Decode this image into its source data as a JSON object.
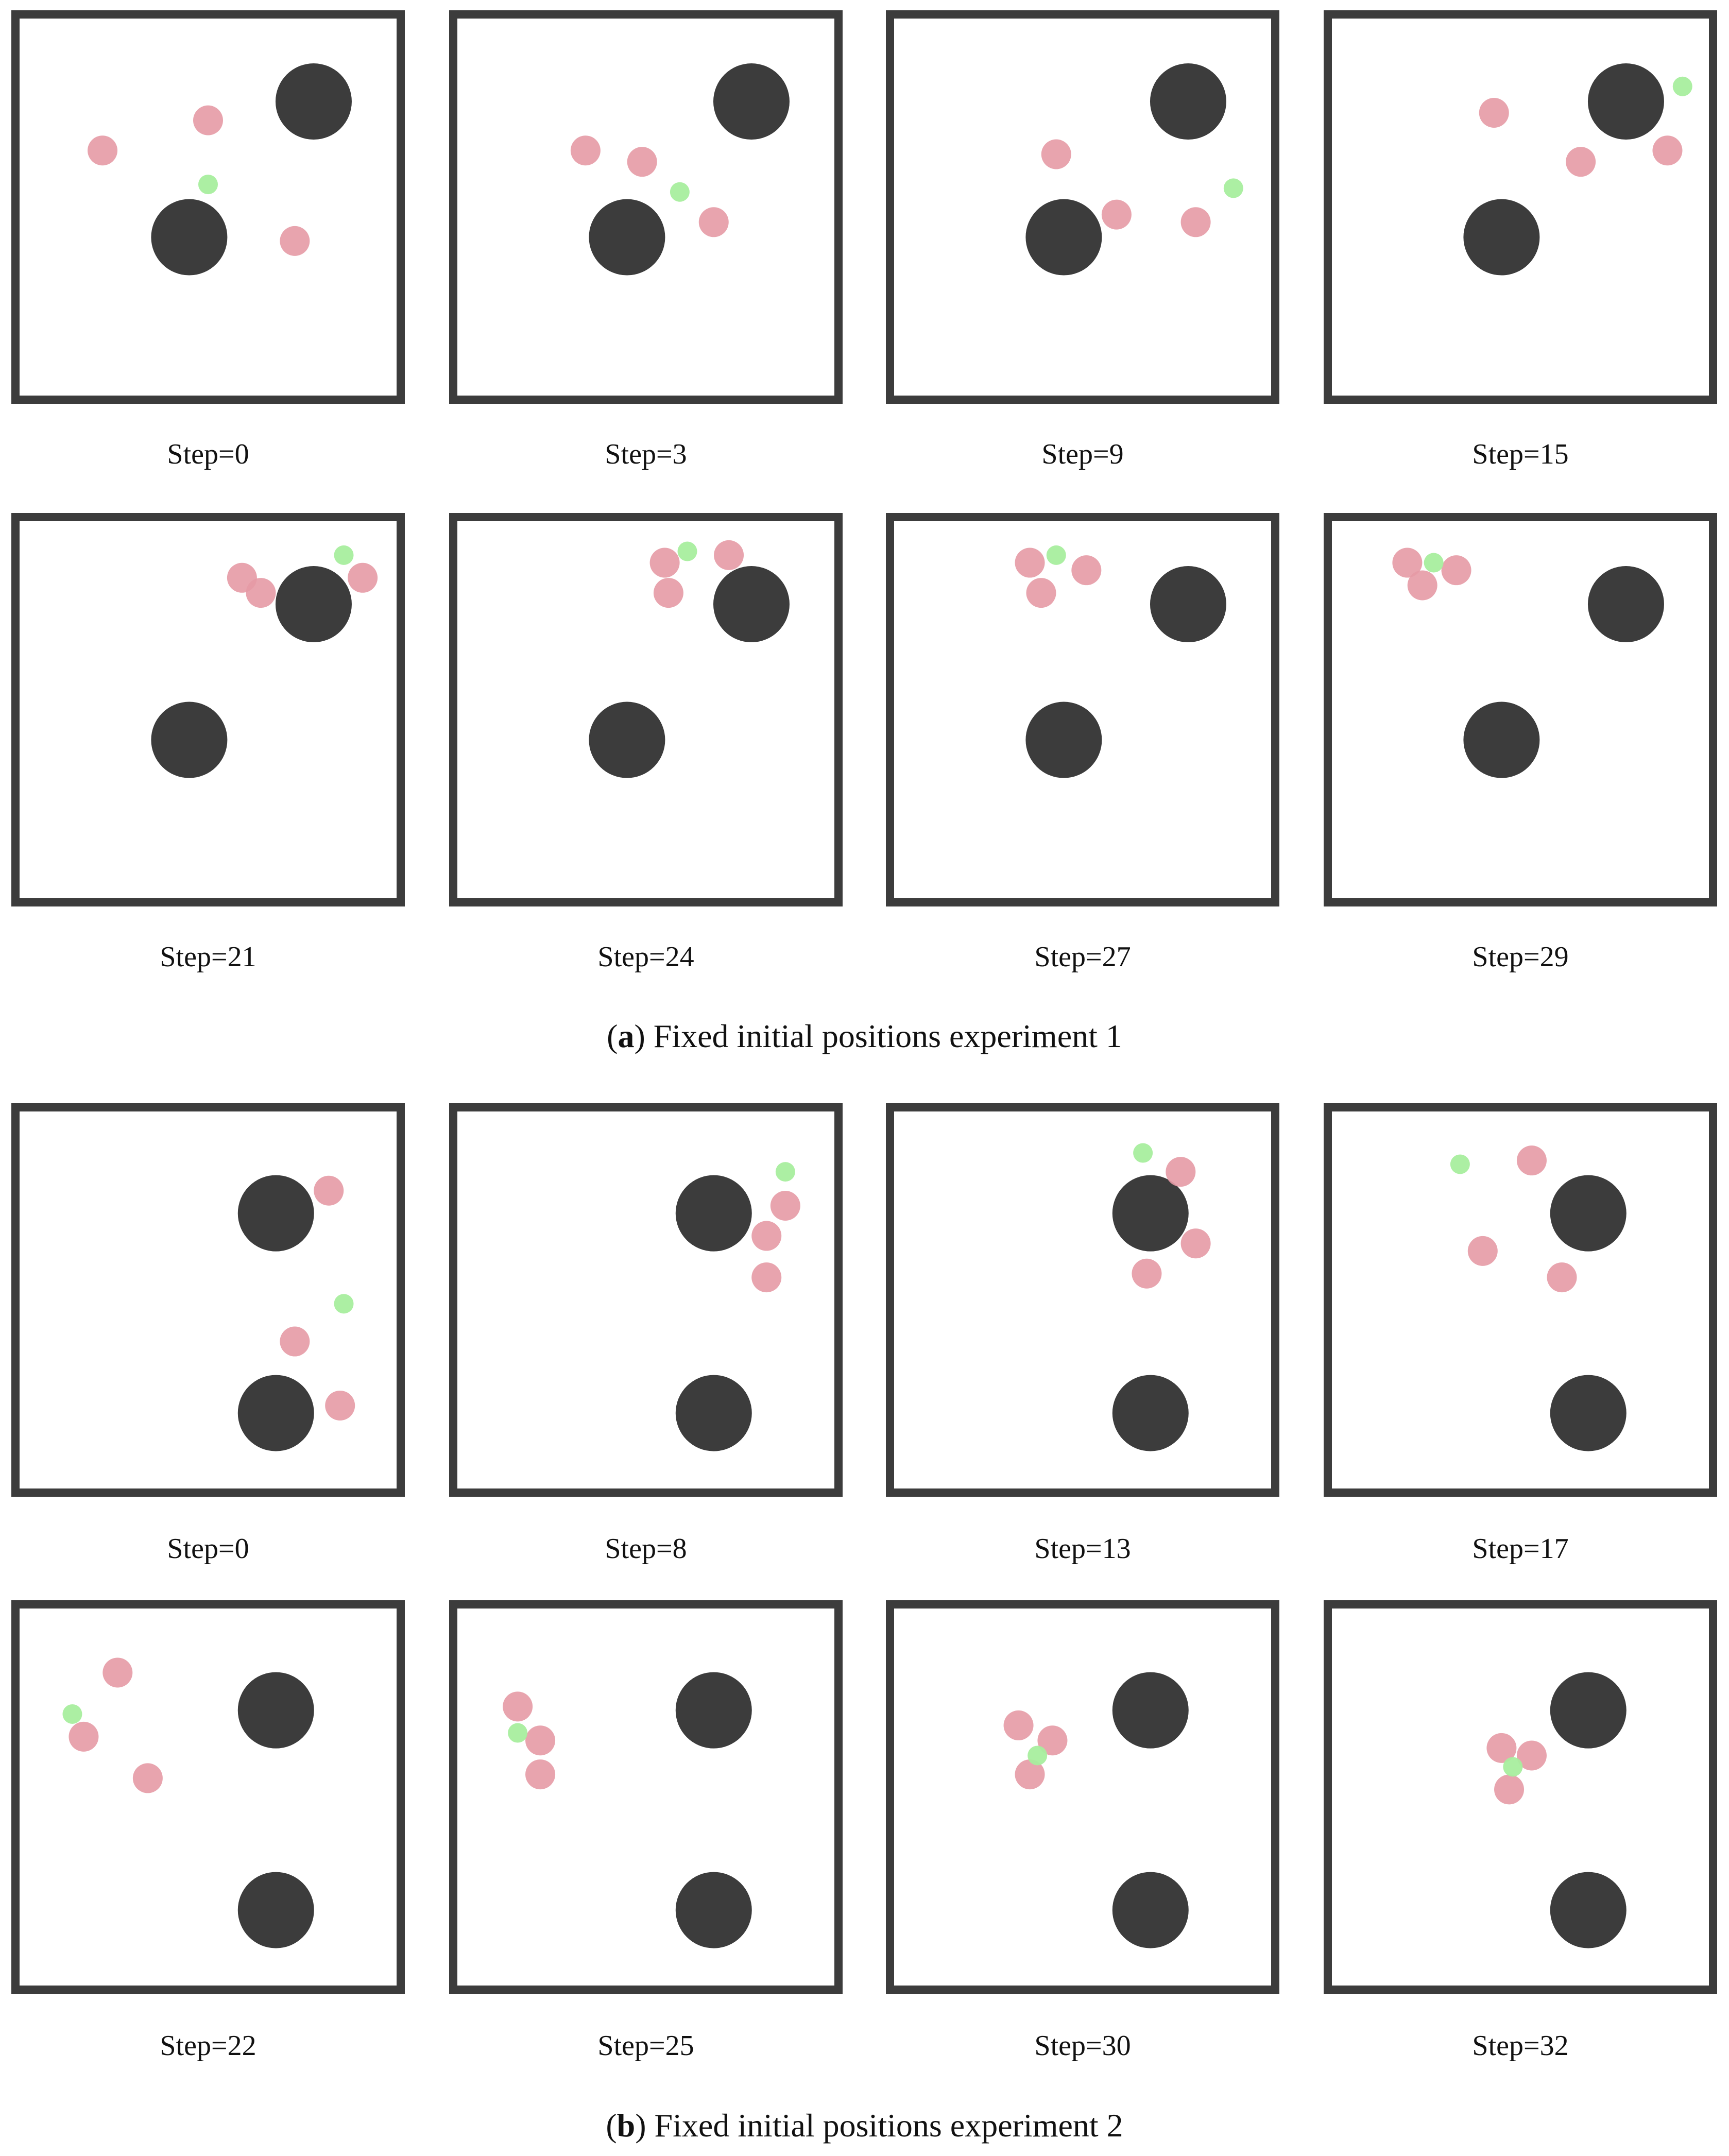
{
  "colors": {
    "frame": "#3c3c3c",
    "obstacle": "#3c3c3c",
    "pursuer": "#e69aa5",
    "evader": "#a8ee9e",
    "background": "#ffffff"
  },
  "legend_note": "",
  "figures": [
    {
      "letter": "(a)",
      "caption": "Fixed initial positions experiment 1",
      "panels": [
        {
          "label": "Step=0",
          "obstacles": [
            [
              0.78,
              0.22
            ],
            [
              0.45,
              0.58
            ]
          ],
          "pursuers": [
            [
              0.5,
              0.27
            ],
            [
              0.22,
              0.35
            ],
            [
              0.73,
              0.59
            ]
          ],
          "evader": [
            0.5,
            0.44
          ]
        },
        {
          "label": "Step=3",
          "obstacles": [
            [
              0.78,
              0.22
            ],
            [
              0.45,
              0.58
            ]
          ],
          "pursuers": [
            [
              0.34,
              0.35
            ],
            [
              0.49,
              0.38
            ],
            [
              0.68,
              0.54
            ]
          ],
          "evader": [
            0.59,
            0.46
          ]
        },
        {
          "label": "Step=9",
          "obstacles": [
            [
              0.78,
              0.22
            ],
            [
              0.45,
              0.58
            ]
          ],
          "pursuers": [
            [
              0.43,
              0.36
            ],
            [
              0.59,
              0.52
            ],
            [
              0.8,
              0.54
            ]
          ],
          "evader": [
            0.9,
            0.45
          ]
        },
        {
          "label": "Step=15",
          "obstacles": [
            [
              0.78,
              0.22
            ],
            [
              0.45,
              0.58
            ]
          ],
          "pursuers": [
            [
              0.43,
              0.25
            ],
            [
              0.66,
              0.38
            ],
            [
              0.89,
              0.35
            ]
          ],
          "evader": [
            0.93,
            0.18
          ]
        },
        {
          "label": "Step=21",
          "obstacles": [
            [
              0.78,
              0.22
            ],
            [
              0.45,
              0.58
            ]
          ],
          "pursuers": [
            [
              0.59,
              0.15
            ],
            [
              0.64,
              0.19
            ],
            [
              0.91,
              0.15
            ]
          ],
          "evader": [
            0.86,
            0.09
          ]
        },
        {
          "label": "Step=24",
          "obstacles": [
            [
              0.78,
              0.22
            ],
            [
              0.45,
              0.58
            ]
          ],
          "pursuers": [
            [
              0.55,
              0.11
            ],
            [
              0.72,
              0.09
            ],
            [
              0.56,
              0.19
            ]
          ],
          "evader": [
            0.61,
            0.08
          ]
        },
        {
          "label": "Step=27",
          "obstacles": [
            [
              0.78,
              0.22
            ],
            [
              0.45,
              0.58
            ]
          ],
          "pursuers": [
            [
              0.36,
              0.11
            ],
            [
              0.51,
              0.13
            ],
            [
              0.39,
              0.19
            ]
          ],
          "evader": [
            0.43,
            0.09
          ]
        },
        {
          "label": "Step=29",
          "obstacles": [
            [
              0.78,
              0.22
            ],
            [
              0.45,
              0.58
            ]
          ],
          "pursuers": [
            [
              0.2,
              0.11
            ],
            [
              0.33,
              0.13
            ],
            [
              0.24,
              0.17
            ]
          ],
          "evader": [
            0.27,
            0.11
          ]
        }
      ]
    },
    {
      "letter": "(b)",
      "caption": "Fixed initial positions experiment 2",
      "panels": [
        {
          "label": "Step=0",
          "obstacles": [
            [
              0.68,
              0.27
            ],
            [
              0.68,
              0.8
            ]
          ],
          "pursuers": [
            [
              0.82,
              0.21
            ],
            [
              0.73,
              0.61
            ],
            [
              0.85,
              0.78
            ]
          ],
          "evader": [
            0.86,
            0.51
          ]
        },
        {
          "label": "Step=8",
          "obstacles": [
            [
              0.68,
              0.27
            ],
            [
              0.68,
              0.8
            ]
          ],
          "pursuers": [
            [
              0.87,
              0.25
            ],
            [
              0.82,
              0.33
            ],
            [
              0.82,
              0.44
            ]
          ],
          "evader": [
            0.87,
            0.16
          ]
        },
        {
          "label": "Step=13",
          "obstacles": [
            [
              0.68,
              0.27
            ],
            [
              0.68,
              0.8
            ]
          ],
          "pursuers": [
            [
              0.76,
              0.16
            ],
            [
              0.8,
              0.35
            ],
            [
              0.67,
              0.43
            ]
          ],
          "evader": [
            0.66,
            0.11
          ]
        },
        {
          "label": "Step=17",
          "obstacles": [
            [
              0.68,
              0.27
            ],
            [
              0.68,
              0.8
            ]
          ],
          "pursuers": [
            [
              0.53,
              0.13
            ],
            [
              0.4,
              0.37
            ],
            [
              0.61,
              0.44
            ]
          ],
          "evader": [
            0.34,
            0.14
          ]
        },
        {
          "label": "Step=22",
          "obstacles": [
            [
              0.68,
              0.27
            ],
            [
              0.68,
              0.8
            ]
          ],
          "pursuers": [
            [
              0.26,
              0.17
            ],
            [
              0.17,
              0.34
            ],
            [
              0.34,
              0.45
            ]
          ],
          "evader": [
            0.14,
            0.28
          ]
        },
        {
          "label": "Step=25",
          "obstacles": [
            [
              0.68,
              0.27
            ],
            [
              0.68,
              0.8
            ]
          ],
          "pursuers": [
            [
              0.16,
              0.26
            ],
            [
              0.22,
              0.35
            ],
            [
              0.22,
              0.44
            ]
          ],
          "evader": [
            0.16,
            0.33
          ]
        },
        {
          "label": "Step=30",
          "obstacles": [
            [
              0.68,
              0.27
            ],
            [
              0.68,
              0.8
            ]
          ],
          "pursuers": [
            [
              0.33,
              0.31
            ],
            [
              0.42,
              0.35
            ],
            [
              0.36,
              0.44
            ]
          ],
          "evader": [
            0.38,
            0.39
          ]
        },
        {
          "label": "Step=32",
          "obstacles": [
            [
              0.68,
              0.27
            ],
            [
              0.68,
              0.8
            ]
          ],
          "pursuers": [
            [
              0.45,
              0.37
            ],
            [
              0.53,
              0.39
            ],
            [
              0.47,
              0.48
            ]
          ],
          "evader": [
            0.48,
            0.42
          ]
        }
      ]
    }
  ]
}
